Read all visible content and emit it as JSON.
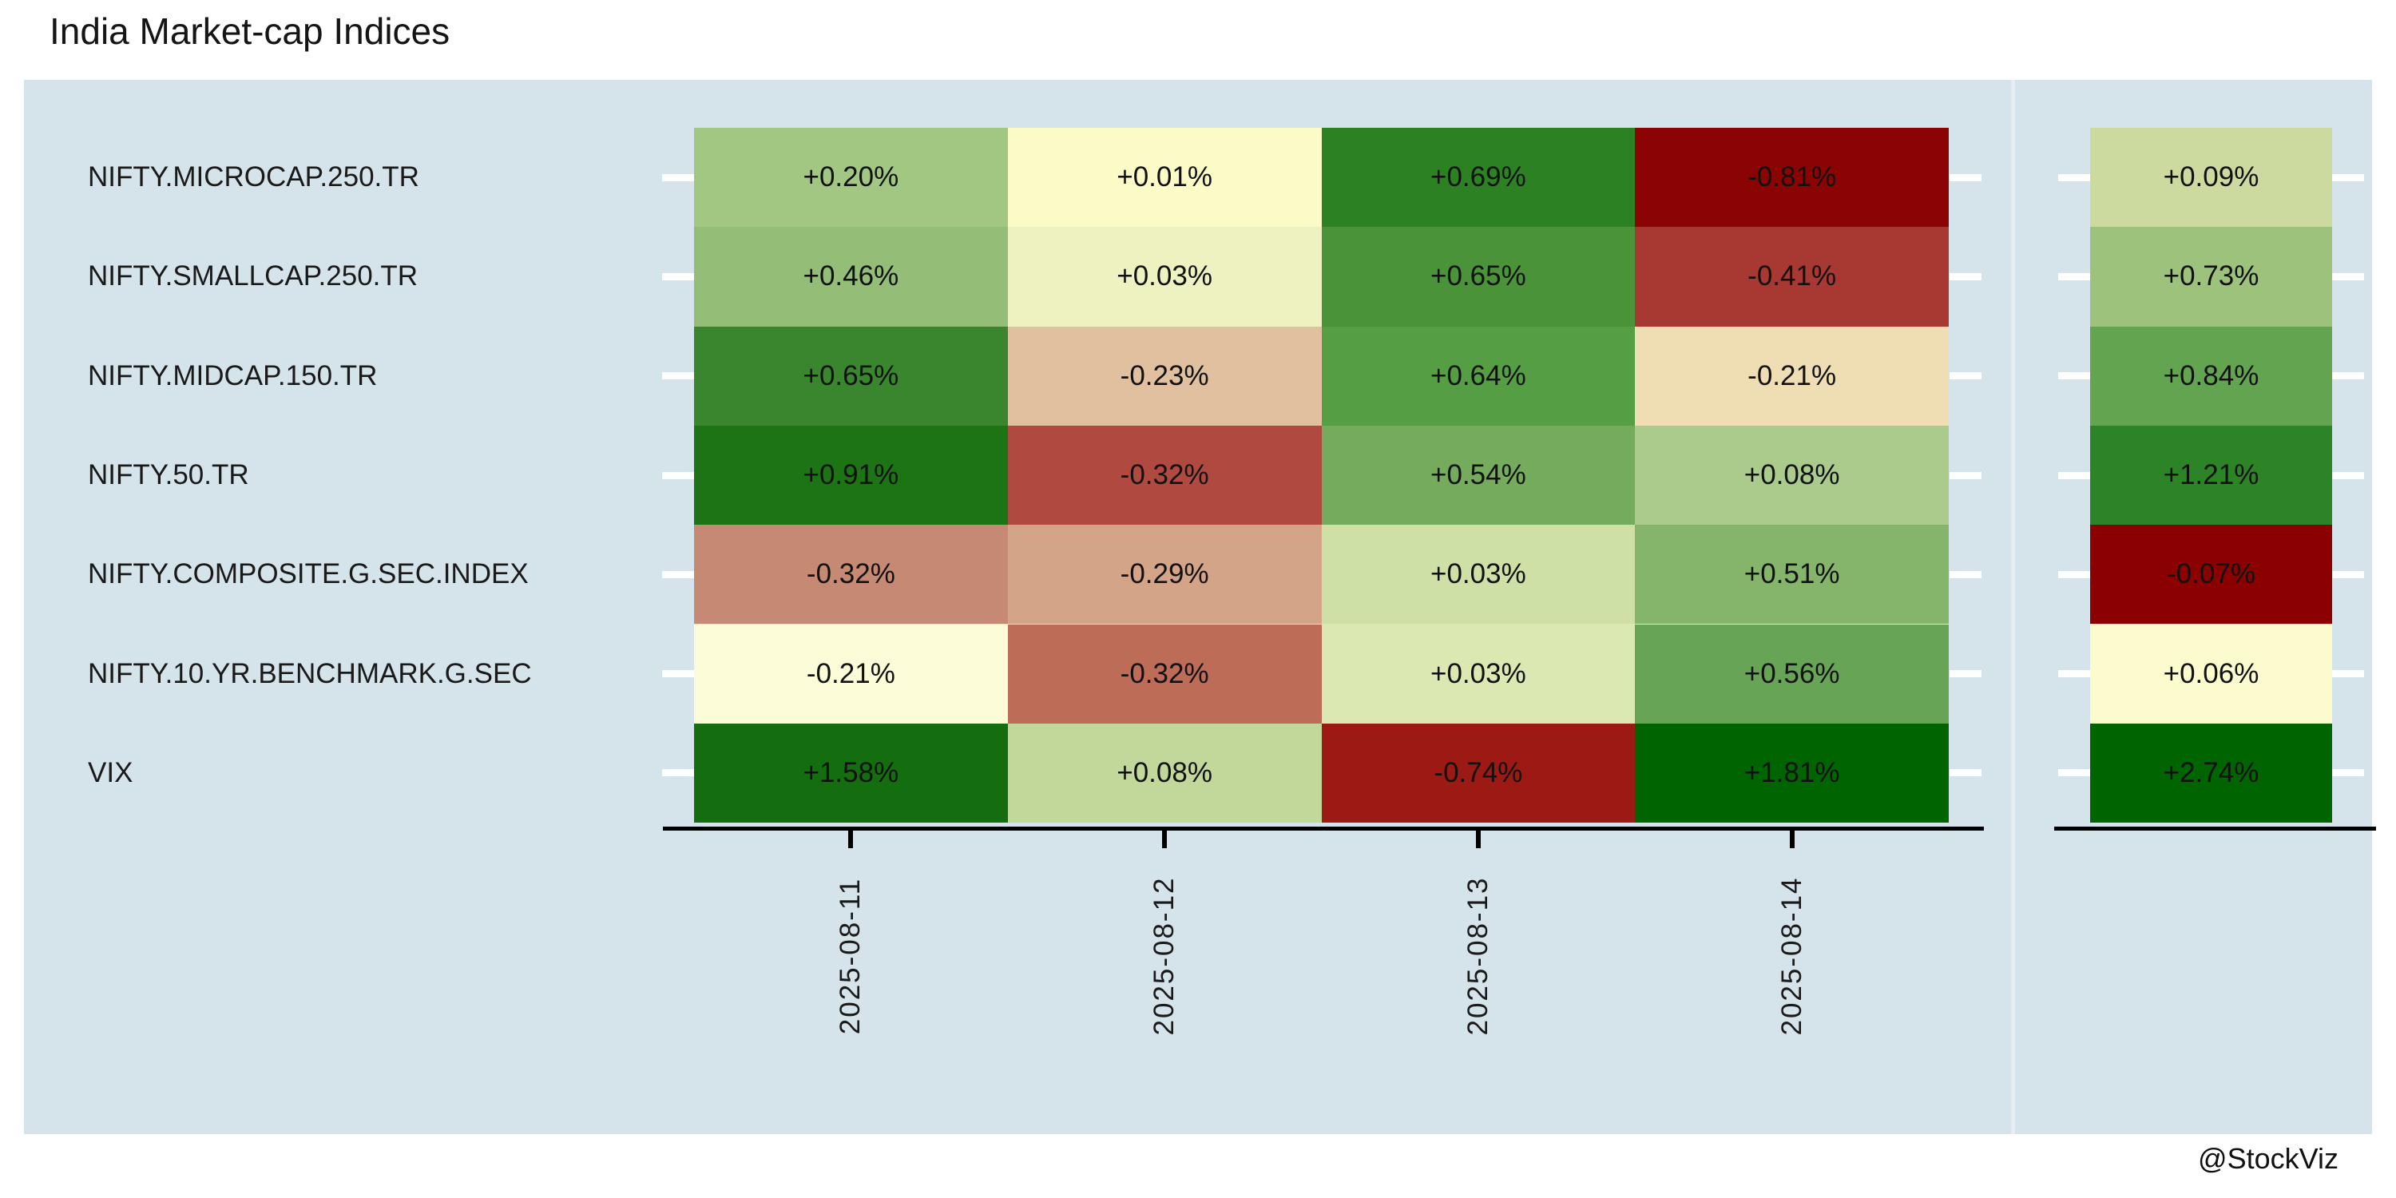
{
  "title": "India Market-cap Indices",
  "watermark": "@StockViz",
  "panel_background": "#d5e3ea",
  "tick_color": "#ffffff",
  "axis_color": "#000000",
  "chart_data": {
    "type": "heatmap",
    "title": "India Market-cap Indices",
    "value_format": "signed percent change",
    "grid": false,
    "legend_position": "none",
    "x_labels": [
      "2025-08-11",
      "2025-08-12",
      "2025-08-13",
      "2025-08-14"
    ],
    "rows": [
      {
        "label": "NIFTY.MICROCAP.250.TR",
        "values": [
          "+0.20%",
          "+0.01%",
          "+0.69%",
          "-0.81%"
        ],
        "colors": [
          "#a2c783",
          "#fbfbc8",
          "#2c8222",
          "#8b0404"
        ],
        "summary_value": "+0.09%",
        "summary_color": "#cdda9f"
      },
      {
        "label": "NIFTY.SMALLCAP.250.TR",
        "values": [
          "+0.46%",
          "+0.03%",
          "+0.65%",
          "-0.41%"
        ],
        "colors": [
          "#94bd78",
          "#eef2c0",
          "#4a9339",
          "#a83832"
        ],
        "summary_value": "+0.73%",
        "summary_color": "#9cc27c"
      },
      {
        "label": "NIFTY.MIDCAP.150.TR",
        "values": [
          "+0.65%",
          "-0.23%",
          "+0.64%",
          "-0.21%"
        ],
        "colors": [
          "#3a862e",
          "#e0c09e",
          "#559e44",
          "#efdeb4"
        ],
        "summary_value": "+0.84%",
        "summary_color": "#63a450"
      },
      {
        "label": "NIFTY.50.TR",
        "values": [
          "+0.91%",
          "-0.32%",
          "+0.54%",
          "+0.08%"
        ],
        "colors": [
          "#1d7414",
          "#b04a41",
          "#74ab5c",
          "#abcb8d"
        ],
        "summary_value": "+1.21%",
        "summary_color": "#2d8427"
      },
      {
        "label": "NIFTY.COMPOSITE.G.SEC.INDEX",
        "values": [
          "-0.32%",
          "-0.29%",
          "+0.03%",
          "+0.51%"
        ],
        "colors": [
          "#c68a74",
          "#d4a488",
          "#cfe0a6",
          "#85b56b"
        ],
        "summary_value": "-0.07%",
        "summary_color": "#8b0000"
      },
      {
        "label": "NIFTY.10.YR.BENCHMARK.G.SEC",
        "values": [
          "-0.21%",
          "-0.32%",
          "+0.03%",
          "+0.56%"
        ],
        "colors": [
          "#fcfcd8",
          "#bd6c58",
          "#dbe8b2",
          "#68a455"
        ],
        "summary_value": "+0.06%",
        "summary_color": "#fbfbce"
      },
      {
        "label": "VIX",
        "values": [
          "+1.58%",
          "+0.08%",
          "-0.74%",
          "+1.81%"
        ],
        "colors": [
          "#146e0f",
          "#c2d89b",
          "#9c1a13",
          "#006400"
        ],
        "summary_value": "+2.74%",
        "summary_color": "#006400"
      }
    ]
  }
}
